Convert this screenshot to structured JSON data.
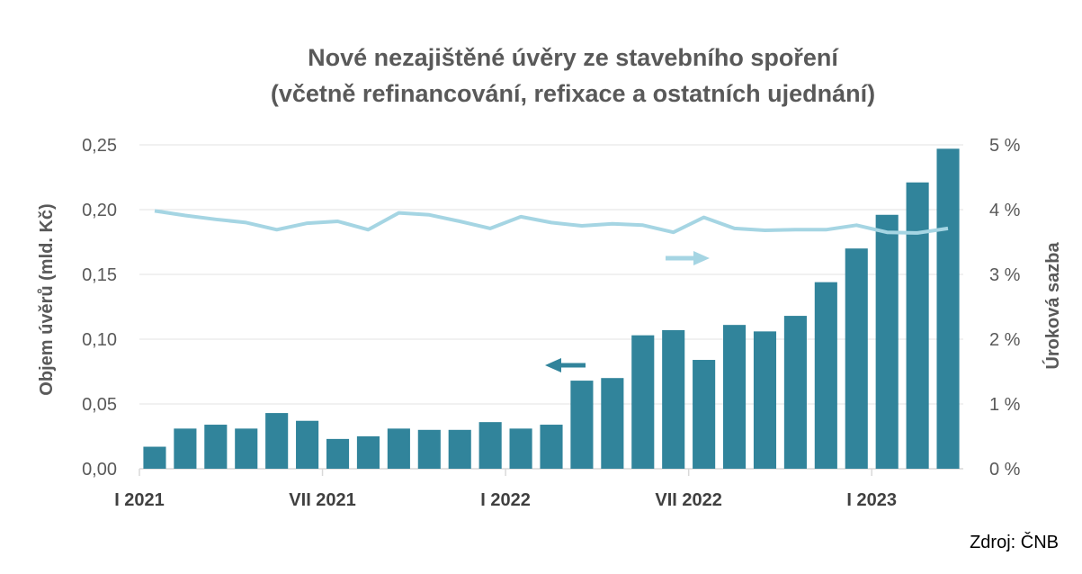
{
  "chart_data": {
    "type": "bar",
    "title_line1": "Nové nezajištěné úvěry ze stavebního spoření",
    "title_line2": "(včetně refinancování, refixace a ostatních ujednání)",
    "ylabel_left": "Objem úvěrů (mld. Kč)",
    "ylabel_right": "Úroková sazba",
    "ylim_left": [
      0,
      0.25
    ],
    "ylim_right": [
      0,
      5
    ],
    "yticks_left": [
      "0,00",
      "0,05",
      "0,10",
      "0,15",
      "0,20",
      "0,25"
    ],
    "yticks_right": [
      "0 %",
      "1 %",
      "2 %",
      "3 %",
      "4 %",
      "5 %"
    ],
    "x_tick_labels": [
      "I 2021",
      "VII 2021",
      "I 2022",
      "VII 2022",
      "I 2023"
    ],
    "grid": true,
    "series": [
      {
        "type": "bar",
        "axis": "left",
        "color": "#31849b",
        "values": [
          0.017,
          0.031,
          0.034,
          0.031,
          0.043,
          0.037,
          0.023,
          0.025,
          0.031,
          0.03,
          0.03,
          0.036,
          0.031,
          0.034,
          0.068,
          0.07,
          0.103,
          0.107,
          0.084,
          0.111,
          0.106,
          0.118,
          0.144,
          0.17,
          0.196,
          0.221,
          0.247
        ]
      },
      {
        "type": "line",
        "axis": "right",
        "color": "#a5d5e3",
        "values": [
          3.98,
          3.91,
          3.85,
          3.8,
          3.69,
          3.79,
          3.82,
          3.69,
          3.95,
          3.92,
          3.82,
          3.71,
          3.89,
          3.8,
          3.75,
          3.78,
          3.76,
          3.65,
          3.88,
          3.71,
          3.68,
          3.69,
          3.69,
          3.76,
          3.65,
          3.64,
          3.71
        ]
      }
    ]
  },
  "source": "Zdroj: ČNB"
}
